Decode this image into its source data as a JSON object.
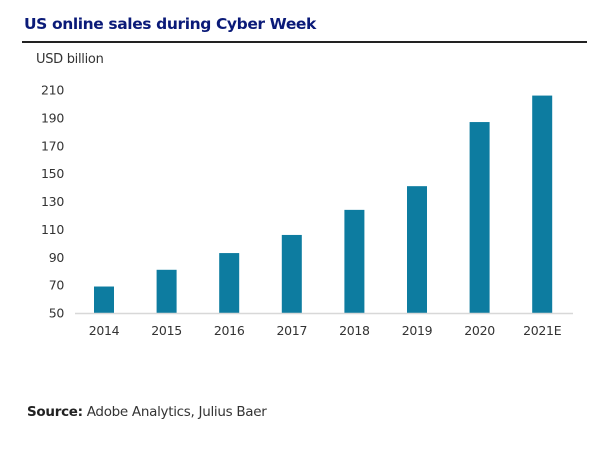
{
  "title": "US online sales during Cyber Week",
  "unit_label": "USD billion",
  "source": {
    "label": "Source:",
    "text": "Adobe Analytics, Julius Baer"
  },
  "colors": {
    "bar": "#0d7ca0",
    "title": "#0a1a78",
    "axis": "#d8d8d8"
  },
  "chart_data": {
    "type": "bar",
    "title": "US online sales during Cyber Week",
    "xlabel": "",
    "ylabel": "USD billion",
    "categories": [
      "2014",
      "2015",
      "2016",
      "2017",
      "2018",
      "2019",
      "2020",
      "2021E"
    ],
    "values": [
      69,
      81,
      93,
      106,
      124,
      141,
      187,
      206
    ],
    "ylim": [
      50,
      210
    ],
    "yticks": [
      50,
      70,
      90,
      110,
      130,
      150,
      170,
      190,
      210
    ],
    "grid": false,
    "legend": "none"
  }
}
